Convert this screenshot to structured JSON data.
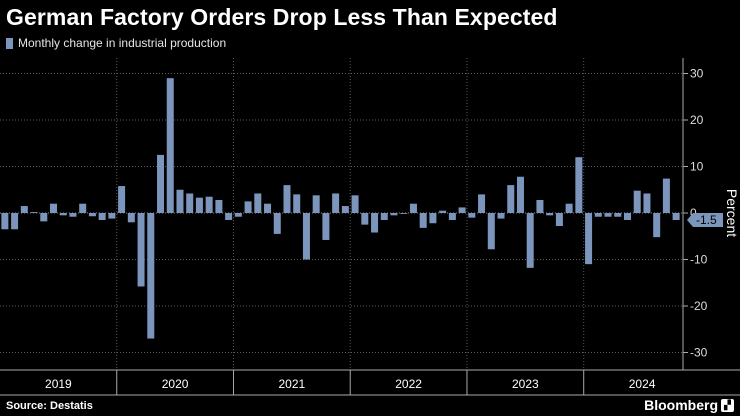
{
  "chart_data": {
    "type": "bar",
    "title": "German Factory Orders Drop Less Than Expected",
    "legend": [
      "Monthly change in industrial production"
    ],
    "ylabel": "Percent",
    "ylim": [
      -32,
      32
    ],
    "yticks": [
      30,
      20,
      10,
      0,
      -10,
      -20,
      -30
    ],
    "year_labels": [
      "2019",
      "2020",
      "2021",
      "2022",
      "2023",
      "2024"
    ],
    "last_value_label": "-1.5",
    "series": [
      {
        "name": "Monthly change in industrial production",
        "values": [
          -3.5,
          -3.5,
          1.5,
          0.2,
          -1.8,
          2.0,
          -0.5,
          -0.8,
          2.0,
          -0.7,
          -1.5,
          -1.2,
          5.8,
          -2.0,
          -15.8,
          -27.0,
          12.5,
          29.0,
          5.0,
          4.2,
          3.3,
          3.5,
          2.8,
          -1.5,
          -0.8,
          2.5,
          4.2,
          2.0,
          -4.5,
          6.0,
          4.0,
          -10.0,
          3.8,
          -5.8,
          4.2,
          1.5,
          3.8,
          -2.5,
          -4.2,
          -1.5,
          -0.5,
          -0.2,
          2.0,
          -3.2,
          -2.2,
          0.5,
          -1.5,
          1.2,
          -1.0,
          4.0,
          -7.8,
          -1.2,
          6.0,
          7.8,
          -11.8,
          2.8,
          -0.5,
          -2.8,
          2.0,
          12.0,
          -11.0,
          -0.8,
          -0.8,
          -0.8,
          -1.5,
          4.8,
          4.2,
          -5.2,
          7.4,
          -1.5
        ]
      }
    ],
    "source": "Source: Destatis",
    "brand": "Bloomberg",
    "colors": {
      "bar": "#7b95bd",
      "background": "#000000",
      "text": "#ffffff",
      "grid": "#5a5a5a",
      "last_label_bg": "#7b95bd"
    }
  },
  "brand_icon": "bloomberg-logo-icon"
}
